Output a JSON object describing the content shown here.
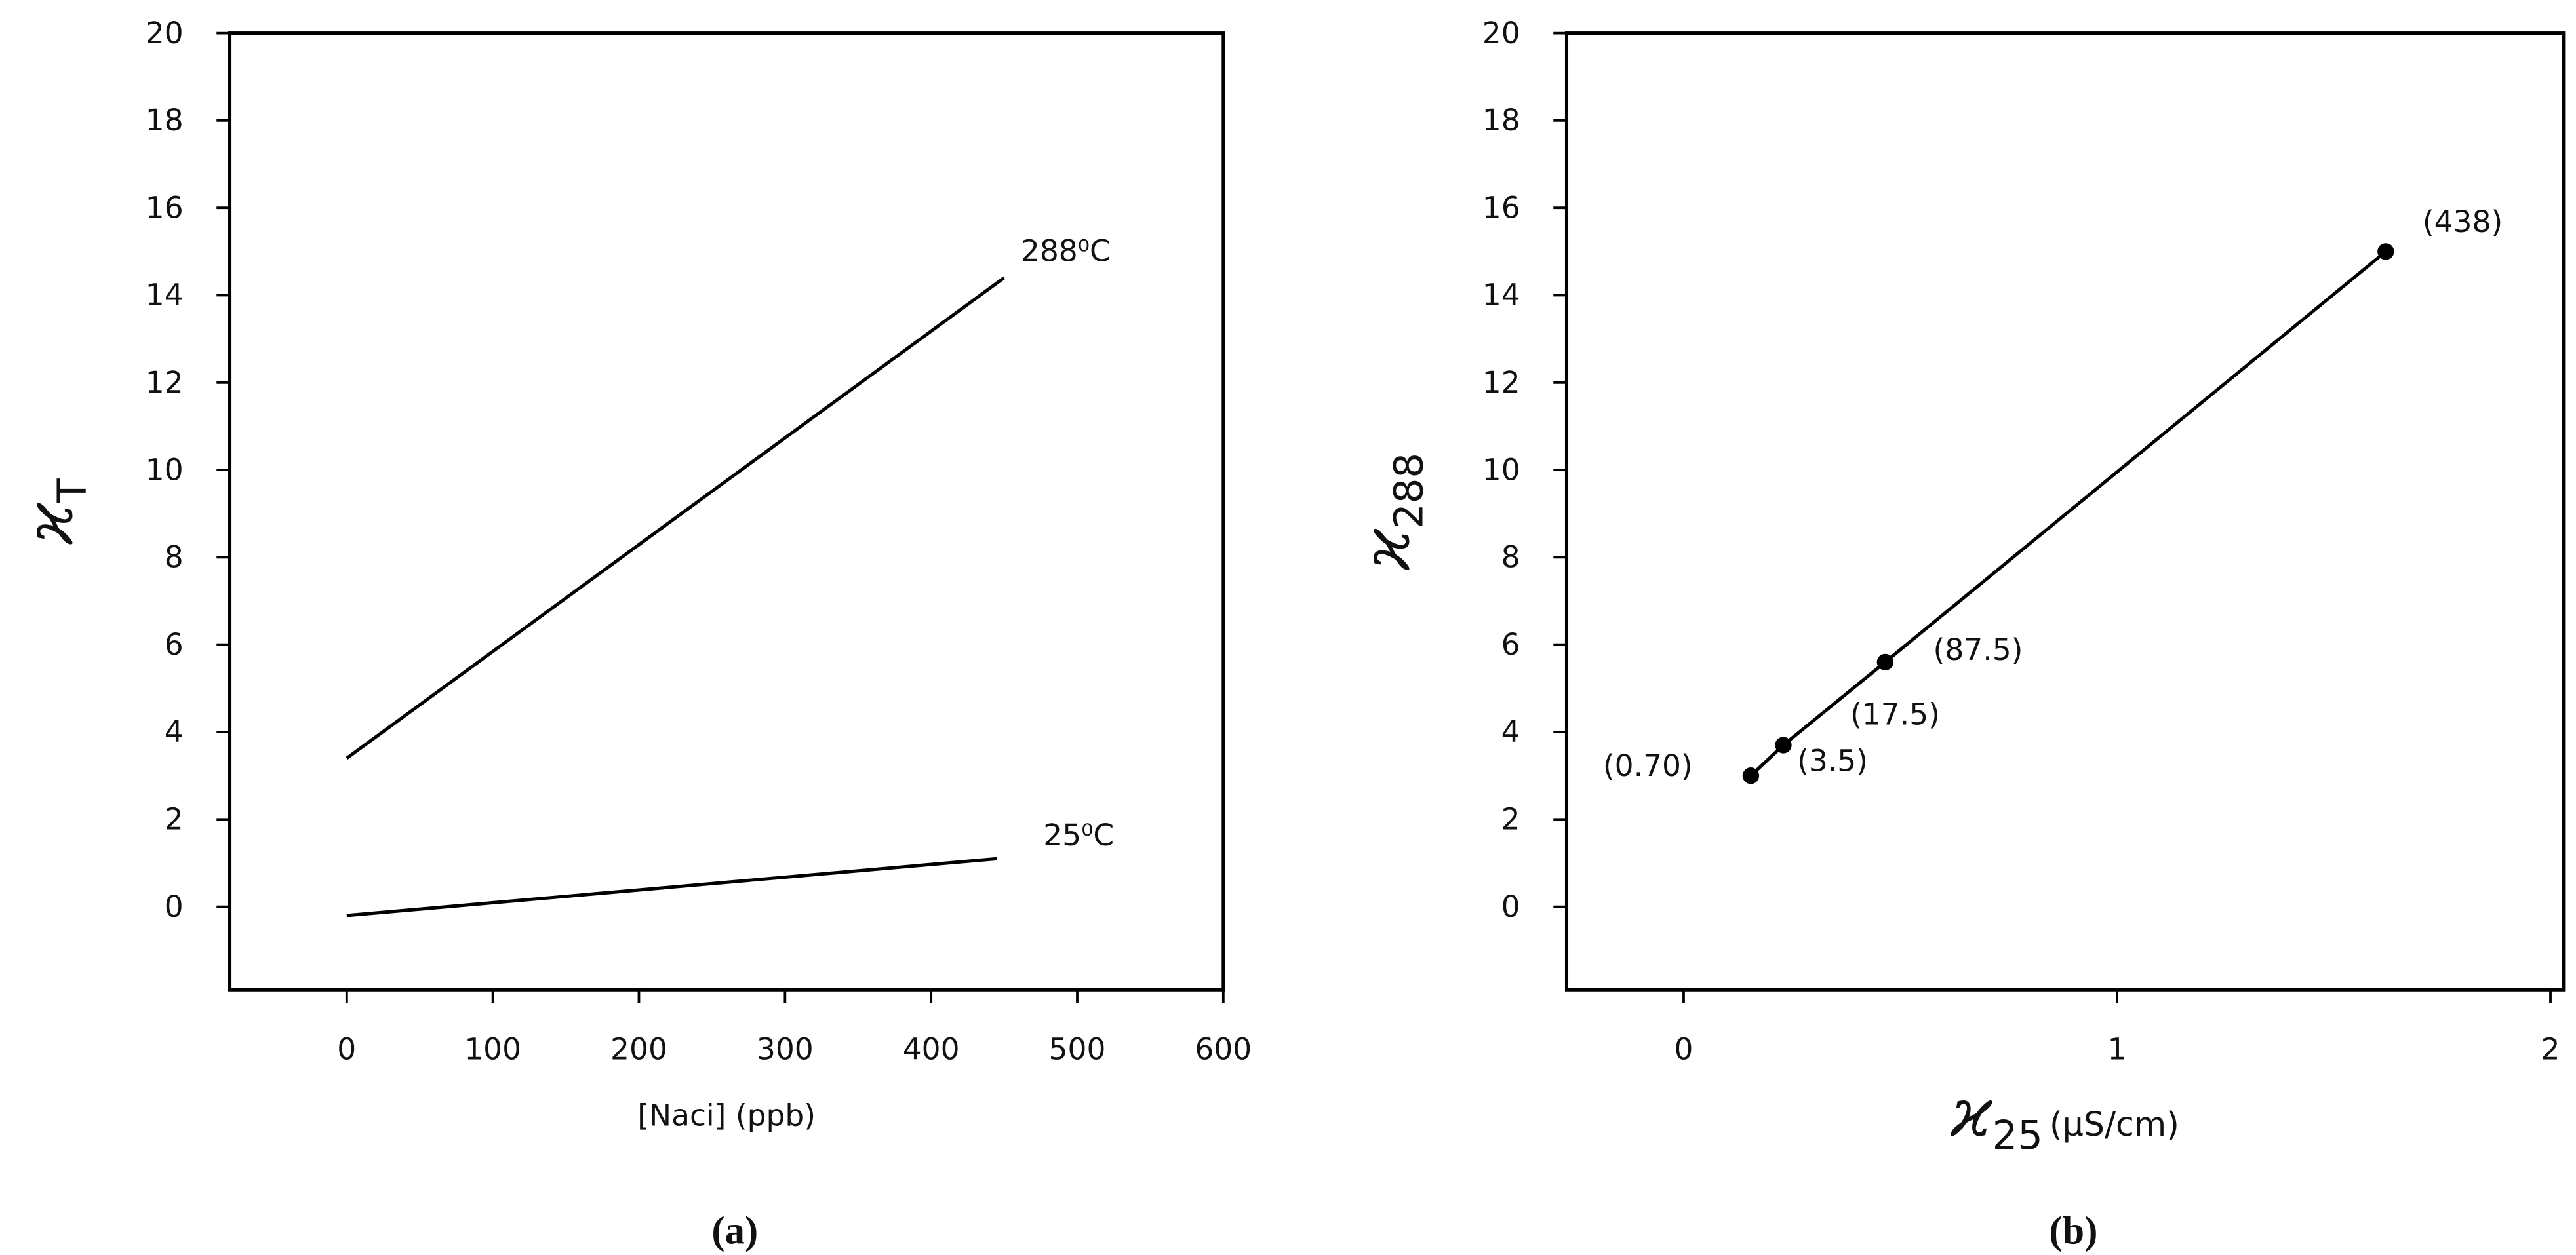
{
  "chart_data": [
    {
      "type": "line",
      "caption": "(a)",
      "ylabel": {
        "symbol": "ϰ",
        "subscript": "T"
      },
      "xlabel": "[Naci] (ppb)",
      "xlim": [
        -80,
        600
      ],
      "xticks": [
        0,
        100,
        200,
        300,
        400,
        500,
        600
      ],
      "ylim": [
        -1.9,
        20
      ],
      "yticks": [
        0,
        2,
        4,
        6,
        8,
        10,
        12,
        14,
        16,
        18,
        20
      ],
      "series": [
        {
          "name": "288⁰C",
          "color": "#000000",
          "x": [
            0,
            450
          ],
          "values": [
            3.4,
            14.4
          ]
        },
        {
          "name": "25⁰C",
          "color": "#000000",
          "x": [
            0,
            445
          ],
          "values": [
            -0.2,
            1.1
          ]
        }
      ]
    },
    {
      "type": "line",
      "caption": "(b)",
      "ylabel": {
        "symbol": "ϰ",
        "subscript": "288"
      },
      "xlabel": {
        "symbol": "ϰ",
        "subscript": "25",
        "unit": "(μS/cm)"
      },
      "xlim": [
        -0.27,
        2.03
      ],
      "xticks": [
        0,
        1,
        2
      ],
      "ylim": [
        -1.9,
        20
      ],
      "yticks": [
        0,
        2,
        4,
        6,
        8,
        10,
        12,
        14,
        16,
        18,
        20
      ],
      "markers": true,
      "series": [
        {
          "color": "#000000",
          "x": [
            0.155,
            0.23,
            0.465,
            1.62
          ],
          "values": [
            3.0,
            3.7,
            5.6,
            15.0
          ]
        }
      ],
      "annotations": [
        "(0.70)",
        "(3.5)",
        "(17.5)",
        "(87.5)",
        "(438)"
      ]
    }
  ]
}
